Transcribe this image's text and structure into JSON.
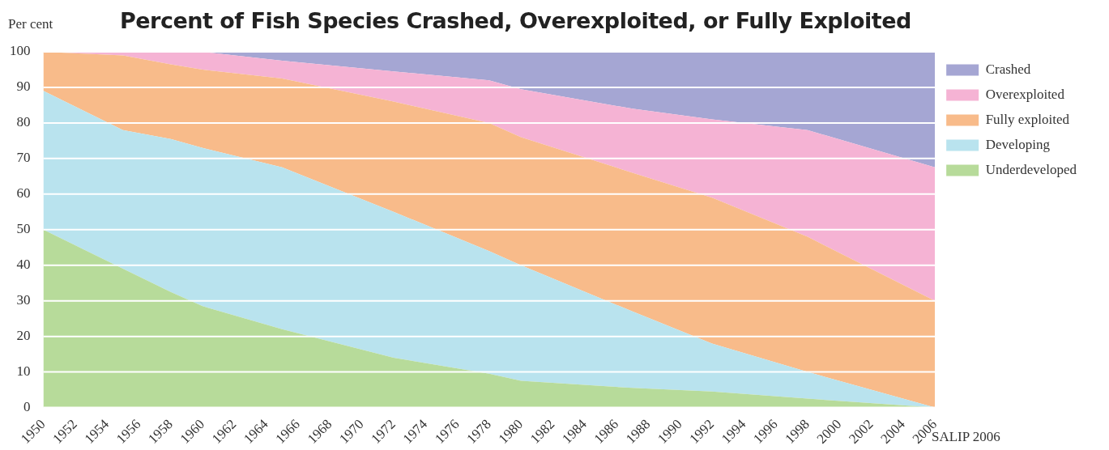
{
  "chart_data": {
    "type": "area",
    "title": "Percent of Fish Species Crashed, Overexploited, or Fully Exploited",
    "ylabel": "Per cent",
    "annotations": [
      "SALIP 2006"
    ],
    "stacked": true,
    "x": [
      1950,
      1955,
      1958,
      1960,
      1965,
      1972,
      1978,
      1980,
      1987,
      1992,
      1998,
      2006
    ],
    "series": [
      {
        "name": "Underdeveloped",
        "color": "#b7db9a",
        "values": [
          50,
          39,
          32.5,
          28.5,
          22,
          14,
          9.5,
          7.5,
          5.5,
          4.5,
          2.5,
          0
        ]
      },
      {
        "name": "Developing",
        "color": "#b9e3ee",
        "values": [
          39,
          39,
          43,
          44.5,
          45.5,
          41,
          34.5,
          32.5,
          21.5,
          13.5,
          7.5,
          0
        ]
      },
      {
        "name": "Fully exploited",
        "color": "#f8bb8a",
        "values": [
          11,
          21,
          21,
          22,
          25,
          31,
          36,
          36,
          39,
          41,
          38,
          30
        ]
      },
      {
        "name": "Overexploited",
        "color": "#f5b3d4",
        "values": [
          0,
          1,
          3.5,
          5,
          5,
          8.5,
          12,
          13.5,
          18,
          22,
          30,
          37.5
        ]
      },
      {
        "name": "Crashed",
        "color": "#a5a6d3",
        "values": [
          0,
          0,
          0,
          0,
          2.5,
          5.5,
          8,
          10.5,
          16,
          19,
          22,
          32.5
        ]
      }
    ],
    "xlim": [
      1950,
      2006
    ],
    "xticks": [
      1950,
      1952,
      1954,
      1956,
      1958,
      1960,
      1962,
      1964,
      1966,
      1968,
      1970,
      1972,
      1974,
      1976,
      1978,
      1980,
      1982,
      1984,
      1986,
      1988,
      1990,
      1992,
      1994,
      1996,
      1998,
      2000,
      2002,
      2004,
      2006
    ],
    "ylim": [
      0,
      100
    ],
    "yticks": [
      0,
      10,
      20,
      30,
      40,
      50,
      60,
      70,
      80,
      90,
      100
    ],
    "grid": "y",
    "legend": "right"
  }
}
